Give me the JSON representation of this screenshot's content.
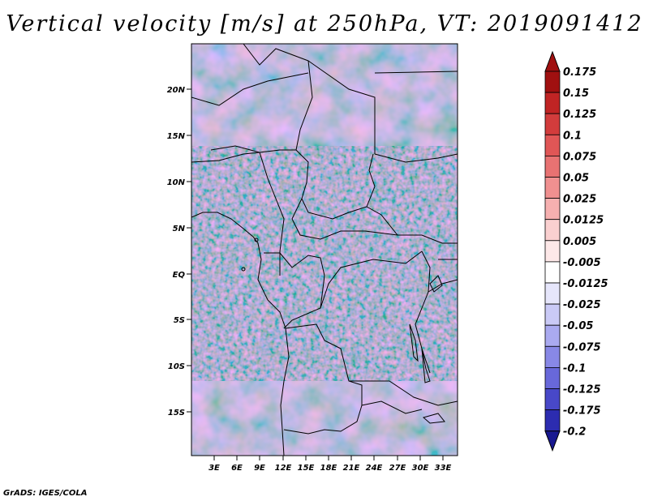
{
  "title": "Vertical velocity [m/s] at 250hPa, VT: 2019091412",
  "credit": "GrADS: IGES/COLA",
  "map": {
    "lat_labels": [
      "20N",
      "15N",
      "10N",
      "5N",
      "EQ",
      "5S",
      "10S",
      "15S"
    ],
    "lon_labels": [
      "3E",
      "6E",
      "9E",
      "12E",
      "15E",
      "18E",
      "21E",
      "24E",
      "27E",
      "30E",
      "33E"
    ]
  },
  "colorbar": {
    "labels": [
      "0.175",
      "0.15",
      "0.125",
      "0.1",
      "0.075",
      "0.05",
      "0.025",
      "0.0125",
      "0.005",
      "-0.005",
      "-0.0125",
      "-0.025",
      "-0.05",
      "-0.075",
      "-0.1",
      "-0.125",
      "-0.175",
      "-0.2"
    ],
    "colors": [
      "#a01010",
      "#c02424",
      "#d23c3c",
      "#e05656",
      "#e87272",
      "#f09090",
      "#f6b0b0",
      "#fad0d0",
      "#fde8e8",
      "#ffffff",
      "#e6e6fb",
      "#cacaf6",
      "#aaaaf0",
      "#8888e6",
      "#6868da",
      "#4848c8",
      "#2c2cb0",
      "#181890"
    ]
  }
}
